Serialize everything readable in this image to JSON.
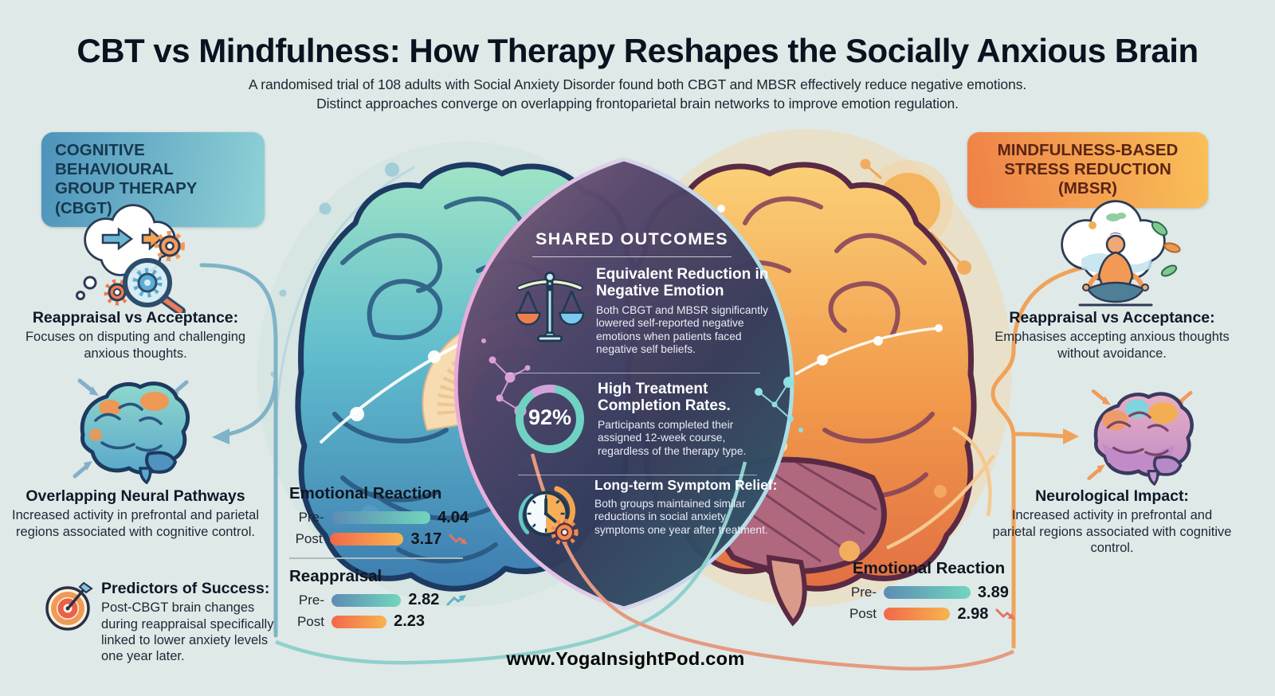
{
  "title": "CBT vs Mindfulness: How Therapy Reshapes the Socially Anxious Brain",
  "subtitle": {
    "line1": "A randomised trial of 108 adults with Social Anxiety Disorder found both CBGT and MBSR effectively reduce negative emotions.",
    "line2": "Distinct approaches converge on overlapping frontoparietal brain networks to improve emotion regulation."
  },
  "cbgt": {
    "badge": "COGNITIVE BEHAVIOURAL\nGROUP THERAPY (CBGT)",
    "sections": [
      {
        "icon": "thought-restructuring-icon",
        "heading": "Reappraisal vs Acceptance:",
        "body": "Focuses on disputing and challenging anxious thoughts."
      },
      {
        "icon": "overlap-brain-icon",
        "heading": "Overlapping Neural Pathways",
        "body": "Increased activity in prefrontal and parietal regions associated with cognitive control."
      },
      {
        "icon": "target-dart-icon",
        "heading": "Predictors of Success:",
        "body": "Post-CBGT brain changes during reappraisal specifically linked to lower anxiety levels one year later."
      }
    ]
  },
  "mbsr": {
    "badge": "MINDFULNESS-BASED\nSTRESS REDUCTION (MBSR)",
    "sections": [
      {
        "icon": "meditation-icon",
        "heading": "Reappraisal vs Acceptance:",
        "body": "Emphasises accepting anxious thoughts without avoidance."
      },
      {
        "icon": "mbsr-brain-icon",
        "heading": "Neurological Impact:",
        "body": "Increased activity in prefrontal and parietal regions associated with cognitive control."
      }
    ]
  },
  "shared": {
    "title": "SHARED OUTCOMES",
    "items": [
      {
        "icon": "balance-scale-icon",
        "heading": "Equivalent Reduction in Negative Emotion",
        "body": "Both CBGT and MBSR significantly lowered self-reported negative emotions when patients faced negative self beliefs."
      },
      {
        "icon": "completion-ring-icon",
        "stat": "92%",
        "heading": "High Treatment Completion Rates.",
        "body": "Participants completed their assigned 12-week course, regardless of the therapy type."
      },
      {
        "icon": "clock-gear-icon",
        "heading": "Long-term Symptom Relief:",
        "body": "Both groups maintained similar reductions in social anxiety symptoms one year after treatment."
      }
    ]
  },
  "chart_data": [
    {
      "owner": "CBGT",
      "type": "bar",
      "x_max": 4.5,
      "sections": [
        {
          "title": "Emotional Reaction",
          "rows": [
            {
              "label": "Pre-",
              "value": 4.04,
              "series": "pre"
            },
            {
              "label": "Post",
              "value": 3.17,
              "series": "post",
              "trend": "down"
            }
          ]
        },
        {
          "title": "Reappraisal",
          "rows": [
            {
              "label": "Pre-",
              "value": 2.82,
              "series": "pre",
              "trend": "up"
            },
            {
              "label": "Post",
              "value": 2.23,
              "series": "post"
            }
          ]
        }
      ]
    },
    {
      "owner": "MBSR",
      "type": "bar",
      "x_max": 4.5,
      "sections": [
        {
          "title": "Emotional Reaction",
          "rows": [
            {
              "label": "Pre-",
              "value": 3.89,
              "series": "pre"
            },
            {
              "label": "Post",
              "value": 2.98,
              "series": "post",
              "trend": "down"
            }
          ]
        }
      ]
    }
  ],
  "footer": {
    "url": "www.YogaInsightPod.com"
  },
  "colors": {
    "background": "#dfe9e7",
    "cbgt_badge_start": "#4d93bb",
    "cbgt_badge_end": "#8fd2d6",
    "mbsr_badge_start": "#ef8147",
    "mbsr_badge_end": "#f9c058",
    "pre_bar": "#5d8cb4 → #72d6bd",
    "post_bar": "#f2684a → #f8b44e",
    "lens_dark": "#32395b",
    "ring_teal": "#6fd2c3",
    "ring_pink": "#d2a3db",
    "trend_down": "#de7663",
    "trend_up": "#5fb3c4"
  }
}
